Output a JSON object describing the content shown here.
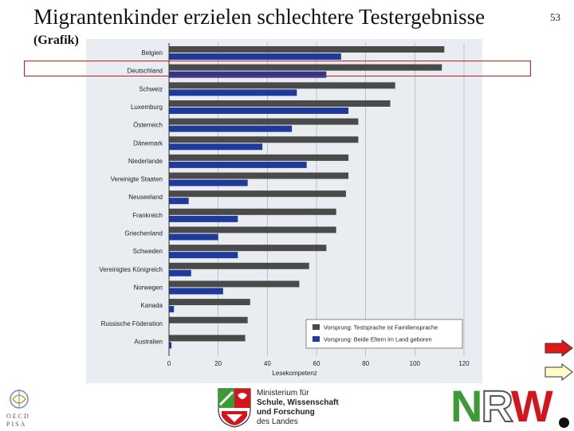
{
  "slide": {
    "title": "Migrantenkinder erzielen schlechtere Testergebnisse",
    "subtitle": "(Grafik)",
    "page_number": "53"
  },
  "footer": {
    "oecd_logo_letters": "OECD PISA",
    "ministry_line1": "Ministerium für",
    "ministry_line2": "Schule, Wissenschaft",
    "ministry_line3": "und Forschung",
    "ministry_line4": "des Landes",
    "nrw_logo": "NRW"
  },
  "colors": {
    "series_gray": "#4a4a4a",
    "series_blue": "#1e3b9c",
    "highlight_red": "#d81818",
    "nav_red": "#e01818",
    "nav_yellow": "#fffcc8"
  },
  "chart_data": {
    "type": "bar",
    "orientation": "horizontal",
    "categories": [
      "Belgien",
      "Deutschland",
      "Schweiz",
      "Luxemburg",
      "Österreich",
      "Dänemark",
      "Niederlande",
      "Vereinigte Staaten",
      "Neuseeland",
      "Frankreich",
      "Griechenland",
      "Schweden",
      "Vereinigtes Königreich",
      "Norwegen",
      "Kanada",
      "Russische Föderation",
      "Australien"
    ],
    "series": [
      {
        "name": "Vorsprung: Testsprache ist Familiensprache",
        "values": [
          112,
          111,
          92,
          90,
          77,
          77,
          73,
          73,
          72,
          68,
          68,
          64,
          57,
          53,
          33,
          32,
          31
        ]
      },
      {
        "name": "Vorsprung: Beide Eltern im Land geboren",
        "values": [
          70,
          64,
          52,
          73,
          50,
          38,
          56,
          32,
          8,
          28,
          20,
          28,
          9,
          22,
          2,
          null,
          1
        ]
      }
    ],
    "xlabel": "Lesekompetenz",
    "ylabel": "",
    "xlim": [
      0,
      120
    ],
    "x_ticks": [
      0,
      20,
      40,
      60,
      80,
      100,
      120
    ],
    "grid": true,
    "legend_position": "bottom-right",
    "highlighted_category": "Deutschland"
  }
}
